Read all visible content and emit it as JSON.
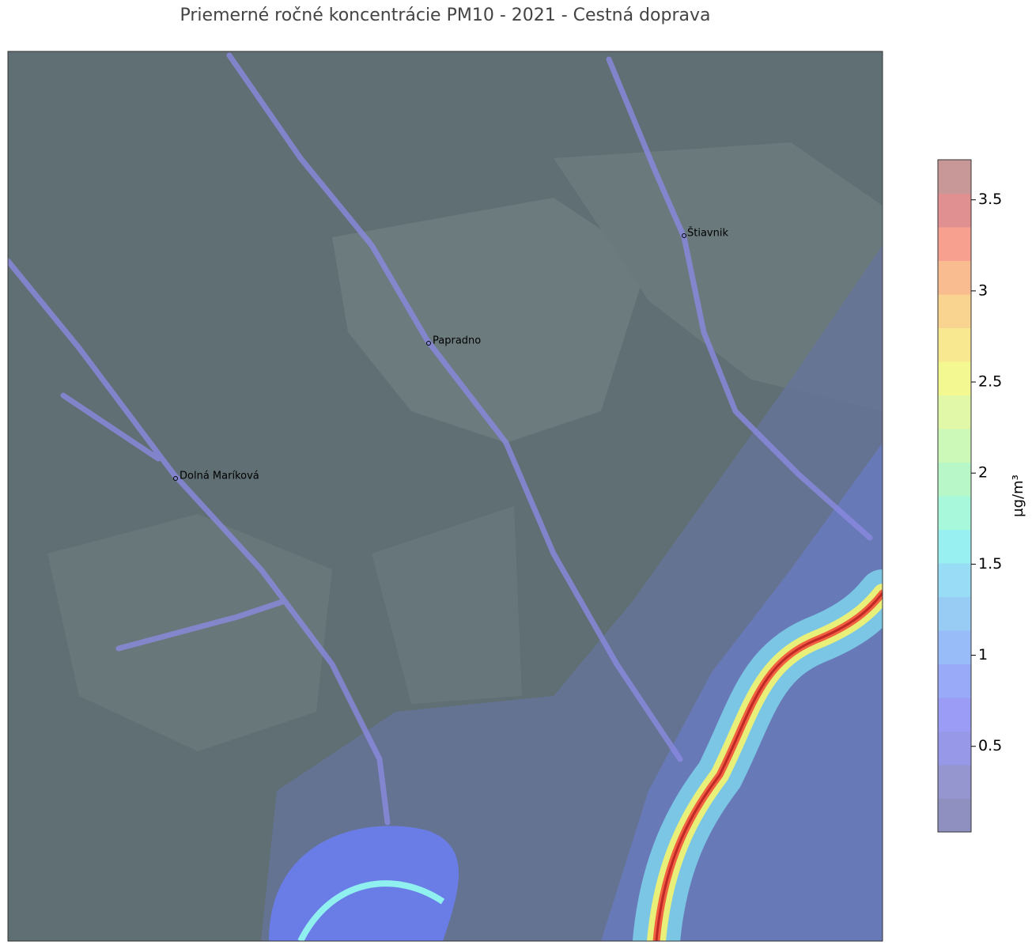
{
  "title": "Priemerné ročné koncentrácie PM10 - 2021 - Cestná doprava",
  "places": [
    "Štiavnik",
    "Papradno",
    "Dolná Maríková"
  ],
  "colorbar": {
    "label": "µg/m³",
    "lim": [
      0.03,
      3.72
    ],
    "ticks": [
      0.5,
      1.0,
      1.5,
      2.0,
      2.5,
      3.0,
      3.5
    ],
    "colors": [
      "#9090c0",
      "#9595d0",
      "#9898e8",
      "#9a9cf5",
      "#98aaf8",
      "#98bcf8",
      "#98ccf5",
      "#98dcf5",
      "#98f0f0",
      "#a8f8dc",
      "#b8f8c8",
      "#ccf8b8",
      "#e0f8a8",
      "#f4f890",
      "#f8e890",
      "#f8d490",
      "#f8bc90",
      "#f8a090",
      "#e09090",
      "#c89898"
    ]
  }
}
